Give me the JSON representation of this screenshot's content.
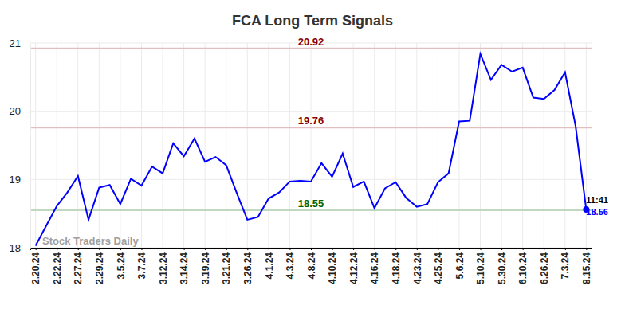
{
  "chart_data": {
    "type": "line",
    "title": "FCA Long Term Signals",
    "categories": [
      "2.20.24",
      null,
      "2.22.24",
      null,
      "2.27.24",
      null,
      "2.29.24",
      null,
      "3.5.24",
      null,
      "3.7.24",
      null,
      "3.12.24",
      null,
      "3.14.24",
      null,
      "3.19.24",
      null,
      "3.21.24",
      null,
      "3.26.24",
      null,
      "4.1.24",
      null,
      "4.3.24",
      null,
      "4.8.24",
      null,
      "4.10.24",
      null,
      "4.12.24",
      null,
      "4.16.24",
      null,
      "4.18.24",
      null,
      "4.23.24",
      null,
      "4.25.24",
      null,
      "5.6.24",
      null,
      "5.10.24",
      null,
      "5.30.24",
      null,
      "6.10.24",
      null,
      "6.26.24",
      null,
      "7.3.24",
      null,
      "8.15.24"
    ],
    "series": [
      {
        "color": "#0000ff",
        "values": [
          18.03,
          18.32,
          18.61,
          18.81,
          19.05,
          18.41,
          18.88,
          18.92,
          18.64,
          19.01,
          18.91,
          19.19,
          19.09,
          19.53,
          19.34,
          19.6,
          19.26,
          19.33,
          19.21,
          18.8,
          18.41,
          18.45,
          18.72,
          18.81,
          18.97,
          18.98,
          18.97,
          19.24,
          19.04,
          19.38,
          18.89,
          18.97,
          18.58,
          18.87,
          18.96,
          18.73,
          18.6,
          18.64,
          18.96,
          19.09,
          19.85,
          19.86,
          20.84,
          20.46,
          20.68,
          20.58,
          20.64,
          20.2,
          20.18,
          20.31,
          20.57,
          19.78,
          18.56
        ]
      }
    ],
    "ylim": [
      18,
      21
    ],
    "yticks": [
      18,
      19,
      20,
      21
    ],
    "grid": true,
    "reference_lines": [
      {
        "value": 20.92,
        "color": "#8b0000"
      },
      {
        "value": 19.76,
        "color": "#8b0000"
      },
      {
        "value": 18.55,
        "color": "#006400"
      }
    ],
    "last_point_label": "11:41",
    "watermark": "Stock Traders Daily"
  }
}
